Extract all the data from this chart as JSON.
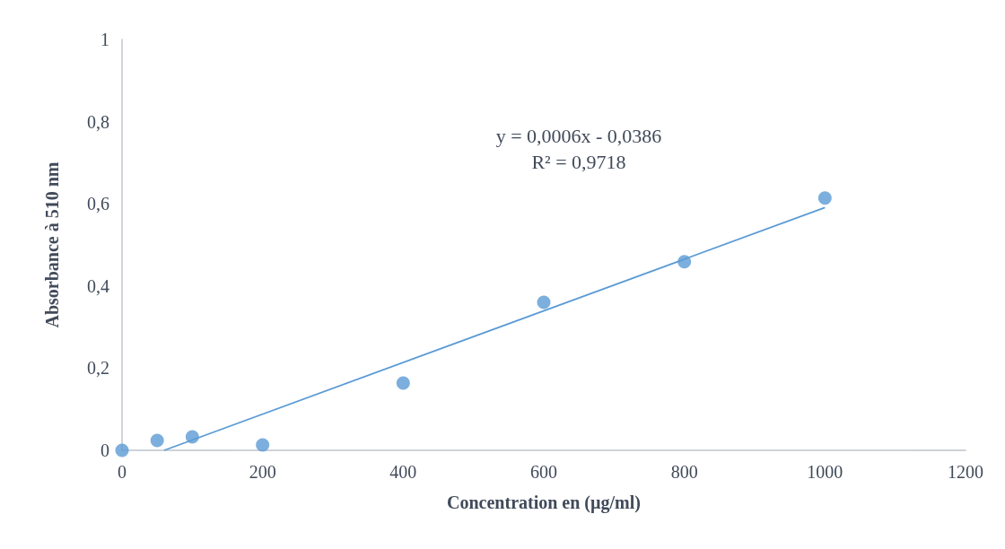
{
  "chart_data": {
    "type": "scatter",
    "xlabel": "Concentration en (µg/ml)",
    "ylabel": "Absorbance à 510 nm",
    "x": [
      0,
      50,
      100,
      200,
      400,
      600,
      800,
      1000
    ],
    "series": [
      {
        "color": "#5b9bd5",
        "marker": "circle",
        "values": [
          0,
          0.024,
          0.033,
          0.013,
          0.164,
          0.36,
          0.459,
          0.614
        ]
      },
      {
        "type": "line",
        "color": "#5b9bd5",
        "marker": "none",
        "x": [
          60,
          1000
        ],
        "values": [
          0,
          0.591
        ]
      }
    ],
    "annotations": [
      "y = 0,0006x - 0,0386",
      "R² = 0,9718"
    ],
    "xlim": [
      0,
      1200
    ],
    "xticks": [
      0,
      200,
      400,
      600,
      800,
      1000,
      1200
    ],
    "ylim": [
      0,
      1
    ],
    "yticks": [
      0,
      {
        "value": 0.2,
        "label": "0,2"
      },
      {
        "value": 0.4,
        "label": "0,4"
      },
      {
        "value": 0.6,
        "label": "0,6"
      },
      {
        "value": 0.8,
        "label": "0,8"
      },
      1
    ],
    "grid": false
  }
}
